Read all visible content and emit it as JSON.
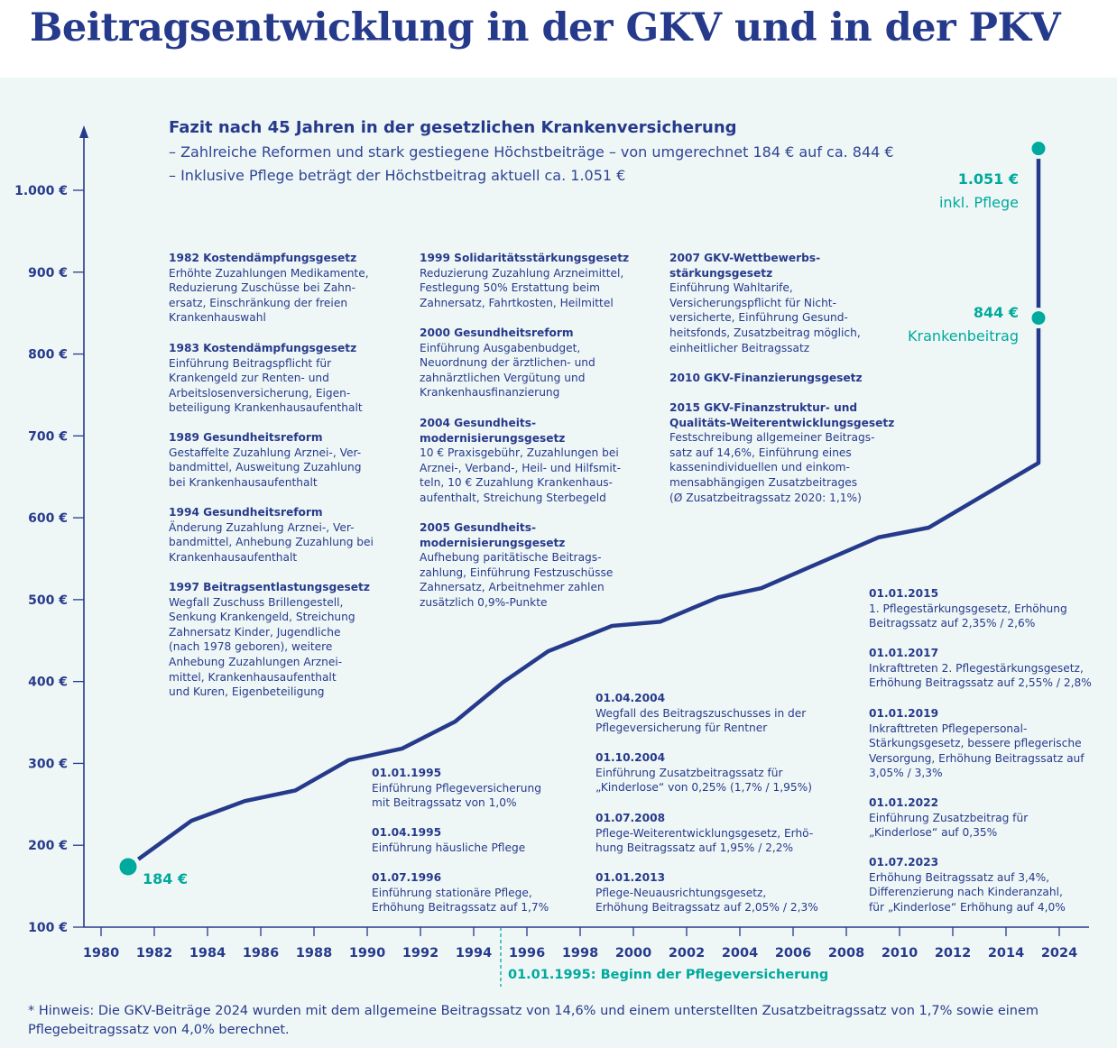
{
  "title": "Beitragsentwicklung in der GKV und in der PKV",
  "fazit": {
    "title": "Fazit nach 45 Jahren in der gesetzlichen Krankenversicherung",
    "bullets": [
      "–  Zahlreiche Reformen und stark gestiegene Höchstbeiträge – von umgerechnet 184 € auf ca. 844 €",
      "–  Inklusive Pflege beträgt der Höchstbeitrag aktuell ca. 1.051 €"
    ]
  },
  "annotations_col1": [
    {
      "title": "1982 Kostendämpfungsgesetz",
      "text": "Erhöhte Zuzahlungen Medikamente,\nReduzierung Zuschüsse bei Zahn-\nersatz, Einschränkung der freien\nKrankenhauswahl"
    },
    {
      "title": "1983 Kostendämpfungsgesetz",
      "text": "Einführung Beitragspflicht für\nKrankengeld zur Renten- und\nArbeitslosenversicherung, Eigen-\nbeteiligung Krankenhausaufenthalt"
    },
    {
      "title": "1989 Gesundheitsreform",
      "text": "Gestaffelte Zuzahlung Arznei-, Ver-\nbandmittel, Ausweitung Zuzahlung\nbei Krankenhausaufenthalt"
    },
    {
      "title": "1994 Gesundheitsreform",
      "text": "Änderung Zuzahlung Arznei-, Ver-\nbandmittel, Anhebung Zuzahlung bei\nKrankenhausaufenthalt"
    },
    {
      "title": "1997 Beitragsentlastungsgesetz",
      "text": "Wegfall Zuschuss Brillengestell,\nSenkung Krankengeld, Streichung\nZahnersatz Kinder, Jugendliche\n(nach 1978 geboren), weitere\nAnhebung Zuzahlungen Arznei-\nmittel, Krankenhausaufenthalt\nund Kuren, Eigenbeteiligung"
    }
  ],
  "annotations_col2": [
    {
      "title": "1999 Solidaritätsstärkungsgesetz",
      "text": "Reduzierung Zuzahlung Arzneimittel,\nFestlegung 50% Erstattung beim\nZahnersatz, Fahrtkosten, Heilmittel"
    },
    {
      "title": "2000 Gesundheitsreform",
      "text": "Einführung Ausgabenbudget,\nNeuordnung der ärztlichen- und\nzahnärztlichen Vergütung und\nKrankenhausfinanzierung"
    },
    {
      "title": "2004 Gesundheits-\nmodernisierungsgesetz",
      "text": "10 € Praxisgebühr, Zuzahlungen bei\nArznei-, Verband-, Heil- und Hilfsmit-\nteln, 10 € Zuzahlung Krankenhaus-\naufenthalt, Streichung Sterbegeld"
    },
    {
      "title": "2005 Gesundheits-\nmodernisierungsgesetz",
      "text": "Aufhebung paritätische Beitrags-\nzahlung, Einführung Festzuschüsse\nZahnersatz, Arbeitnehmer zahlen\nzusätzlich 0,9%-Punkte"
    }
  ],
  "annotations_col3": [
    {
      "title": "2007 GKV-Wettbewerbs-\nstärkungsgesetz",
      "text": "Einführung Wahltarife,\nVersicherungspflicht für Nicht-\nversicherte, Einführung Gesund-\nheitsfonds, Zusatzbeitrag möglich,\neinheitlicher Beitragssatz"
    },
    {
      "title": "2010 GKV-Finanzierungsgesetz",
      "text": ""
    },
    {
      "title": "2015 GKV-Finanzstruktur- und\nQualitäts-Weiterentwicklungsgesetz",
      "text": "Festschreibung allgemeiner Beitrags-\nsatz auf 14,6%, Einführung eines\nkassenindividuellen und einkom-\nmensabhängigen Zusatzbeitrages\n(Ø Zusatzbeitragssatz 2020: 1,1%)"
    }
  ],
  "pflege_col1": [
    {
      "title": "01.01.1995",
      "text": "Einführung Pflegeversicherung\nmit Beitragssatz von 1,0%"
    },
    {
      "title": "01.04.1995",
      "text": "Einführung häusliche Pflege"
    },
    {
      "title": "01.07.1996",
      "text": "Einführung stationäre Pflege,\nErhöhung Beitragssatz auf 1,7%"
    }
  ],
  "pflege_col2": [
    {
      "title": "01.04.2004",
      "text": "Wegfall des Beitragszuschusses in der\nPflegeversicherung für Rentner"
    },
    {
      "title": "01.10.2004",
      "text": "Einführung Zusatzbeitragssatz für\n„Kinderlose“ von 0,25% (1,7% / 1,95%)"
    },
    {
      "title": "01.07.2008",
      "text": "Pflege-Weiterentwicklungsgesetz, Erhö-\nhung Beitragssatz auf 1,95% / 2,2%"
    },
    {
      "title": "01.01.2013",
      "text": "Pflege-Neuausrichtungsgesetz,\nErhöhung Beitragssatz auf 2,05% / 2,3%"
    }
  ],
  "pflege_col3": [
    {
      "title": "01.01.2015",
      "text": "1. Pflegestärkungsgesetz, Erhöhung\nBeitragssatz auf 2,35% / 2,6%"
    },
    {
      "title": "01.01.2017",
      "text": "Inkrafttreten 2. Pflegestärkungsgesetz,\nErhöhung Beitragssatz auf 2,55% / 2,8%"
    },
    {
      "title": "01.01.2019",
      "text": "Inkrafttreten Pflegepersonal-\nStärkungsgesetz, bessere pflegerische\nVersorgung, Erhöhung Beitragssatz auf\n3,05% / 3,3%"
    },
    {
      "title": "01.01.2022",
      "text": "Einführung Zusatzbeitrag für\n„Kinderlose“ auf 0,35%"
    },
    {
      "title": "01.07.2023",
      "text": "Erhöhung Beitragssatz auf 3,4%,\nDifferenzierung nach Kinderanzahl,\nfür „Kinderlose“ Erhöhung auf 4,0%"
    }
  ],
  "markers": {
    "start": {
      "value_label": "184 €"
    },
    "kranken": {
      "value_label": "844 €",
      "label": "Krankenbeitrag"
    },
    "pflege": {
      "value_label": "1.051 €",
      "label": "inkl. Pflege"
    }
  },
  "x_note": "01.01.1995: Beginn der Pflegeversicherung",
  "footer": "* Hinweis: Die GKV-Beiträge 2024 wurden mit dem allgemeine Beitragssatz von 14,6% und einem unterstellten Zusatzbeitragssatz von 1,7% sowie einem Pflegebeitragssatz von 4,0% berechnet.",
  "colors": {
    "navy": "#263a8c",
    "teal": "#00a99d",
    "background": "#eff7f6"
  },
  "chart_data": {
    "type": "line",
    "title": "Beitragsentwicklung in der GKV und in der PKV",
    "xlabel": "",
    "ylabel": "",
    "ylim": [
      100,
      1000
    ],
    "y_ticks": [
      100,
      200,
      300,
      400,
      500,
      600,
      700,
      800,
      900,
      1000
    ],
    "y_tick_labels": [
      "100 €",
      "200 €",
      "300 €",
      "400 €",
      "500 €",
      "600 €",
      "700 €",
      "800 €",
      "900 €",
      "1.000 €"
    ],
    "x_ticks": [
      1980,
      1982,
      1984,
      1986,
      1988,
      1990,
      1992,
      1994,
      1996,
      1998,
      2000,
      2002,
      2004,
      2006,
      2008,
      2010,
      2012,
      2014,
      2024
    ],
    "x_tick_labels": [
      "1980",
      "1982",
      "1984",
      "1986",
      "1988",
      "1990",
      "1992",
      "1994",
      "1996",
      "1998",
      "2000",
      "2002",
      "2004",
      "2006",
      "2008",
      "2010",
      "2012",
      "2014",
      "2024"
    ],
    "x_axis_break": "2014–2024 compressed",
    "grid": false,
    "series": [
      {
        "x": [
          1981.4,
          1983.4,
          1985.4,
          1987.3,
          1989.3,
          1991.3,
          1993.3,
          1995.1,
          1996.8,
          1999.2,
          2001.0,
          2003.2,
          2004.8,
          2009.2,
          2011.1,
          2020.1,
          2020.1,
          2020.1
        ],
        "y": [
          183,
          230,
          254,
          267,
          304,
          318,
          351,
          399,
          437,
          468,
          473,
          503,
          514,
          576,
          588,
          667,
          844,
          1051
        ]
      }
    ],
    "points": [
      {
        "x": 1981.0,
        "y": 184,
        "label": "184 €"
      },
      {
        "x": 2020.1,
        "y": 844,
        "label": "844 € Krankenbeitrag"
      },
      {
        "x": 2020.1,
        "y": 1051,
        "label": "1.051 € inkl. Pflege"
      }
    ],
    "vertical_marker": {
      "x": 1995.0,
      "label": "01.01.1995: Beginn der Pflegeversicherung"
    }
  }
}
